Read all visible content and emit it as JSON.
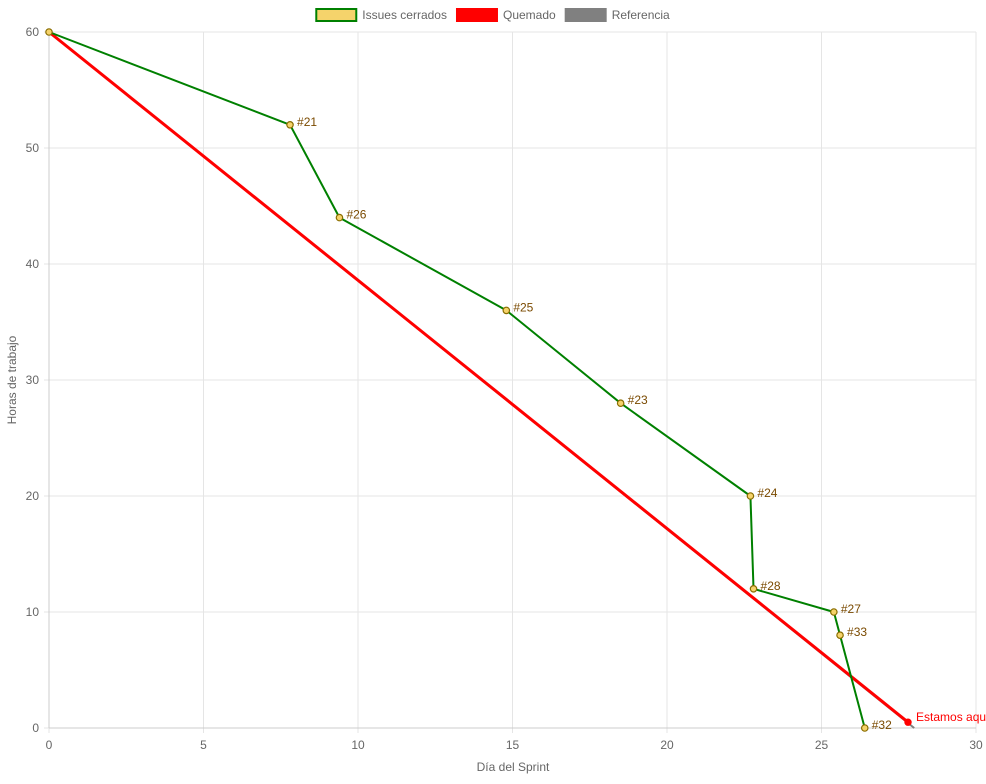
{
  "chart_data": {
    "type": "line",
    "xlabel": "Día del Sprint",
    "ylabel": "Horas de trabajo",
    "xlim": [
      0,
      30
    ],
    "ylim": [
      0,
      60
    ],
    "xticks": [
      0,
      5,
      10,
      15,
      20,
      25,
      30
    ],
    "yticks": [
      0,
      10,
      20,
      30,
      40,
      50,
      60
    ],
    "grid": true,
    "legend_position": "top-center",
    "legend": [
      {
        "label": "Issues cerrados",
        "fill": "#f5d36b",
        "stroke": "#008000"
      },
      {
        "label": "Quemado",
        "fill": "#ff0000",
        "stroke": "#ff0000"
      },
      {
        "label": "Referencia",
        "fill": "#808080",
        "stroke": "#808080"
      }
    ],
    "series": [
      {
        "name": "Issues cerrados",
        "color": "#008000",
        "point_fill": "#f5d36b",
        "point_stroke": "#8a6d00",
        "points": [
          {
            "x": 0,
            "y": 60,
            "label": ""
          },
          {
            "x": 7.8,
            "y": 52,
            "label": "#21"
          },
          {
            "x": 9.4,
            "y": 44,
            "label": "#26"
          },
          {
            "x": 14.8,
            "y": 36,
            "label": "#25"
          },
          {
            "x": 18.5,
            "y": 28,
            "label": "#23"
          },
          {
            "x": 22.7,
            "y": 20,
            "label": "#24"
          },
          {
            "x": 22.8,
            "y": 12,
            "label": "#28"
          },
          {
            "x": 25.4,
            "y": 10,
            "label": "#27"
          },
          {
            "x": 25.6,
            "y": 8,
            "label": "#33"
          },
          {
            "x": 26.4,
            "y": 0,
            "label": "#32"
          }
        ]
      },
      {
        "name": "Quemado",
        "color": "#ff0000",
        "points": [
          {
            "x": 0,
            "y": 60
          },
          {
            "x": 27.8,
            "y": 0.5,
            "label": "Estamos aqu"
          }
        ]
      },
      {
        "name": "Referencia",
        "color": "#808080",
        "points": [
          {
            "x": 0,
            "y": 60
          },
          {
            "x": 28,
            "y": 0
          }
        ]
      }
    ]
  }
}
